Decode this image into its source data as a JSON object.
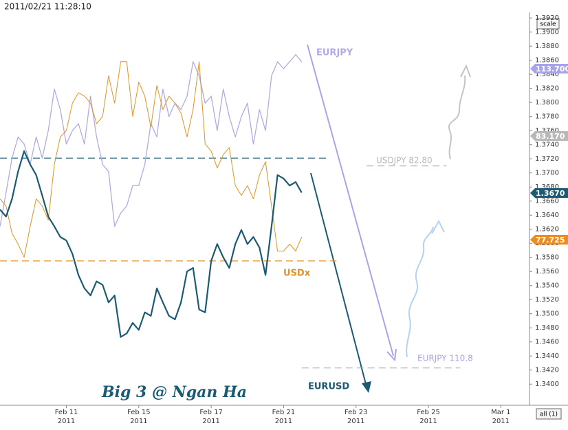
{
  "timestamp": "2011/02/21 11:28:10",
  "scale_button": "scale",
  "range_button": "all (1)",
  "chart_data": {
    "type": "line",
    "x": [
      "2011-02-09 04:00",
      "2011-02-09 08:00",
      "2011-02-09 12:00",
      "2011-02-09 16:00",
      "2011-02-09 20:00",
      "2011-02-10 00:00",
      "2011-02-10 04:00",
      "2011-02-10 08:00",
      "2011-02-10 12:00",
      "2011-02-10 16:00",
      "2011-02-10 20:00",
      "2011-02-11 00:00",
      "2011-02-11 04:00",
      "2011-02-11 08:00",
      "2011-02-11 12:00",
      "2011-02-11 16:00",
      "2011-02-11 20:00",
      "2011-02-14 00:00",
      "2011-02-14 04:00",
      "2011-02-14 08:00",
      "2011-02-14 12:00",
      "2011-02-14 16:00",
      "2011-02-14 20:00",
      "2011-02-15 00:00",
      "2011-02-15 04:00",
      "2011-02-15 08:00",
      "2011-02-15 12:00",
      "2011-02-15 16:00",
      "2011-02-15 20:00",
      "2011-02-16 00:00",
      "2011-02-16 04:00",
      "2011-02-16 08:00",
      "2011-02-16 12:00",
      "2011-02-16 16:00",
      "2011-02-16 20:00",
      "2011-02-17 00:00",
      "2011-02-17 04:00",
      "2011-02-17 08:00",
      "2011-02-17 12:00",
      "2011-02-17 16:00",
      "2011-02-17 20:00",
      "2011-02-18 00:00",
      "2011-02-18 04:00",
      "2011-02-18 08:00",
      "2011-02-18 12:00",
      "2011-02-18 16:00",
      "2011-02-18 20:00",
      "2011-02-21 00:00",
      "2011-02-21 04:00",
      "2011-02-21 08:00",
      "2011-02-21 12:00"
    ],
    "xlim": [
      "2011-02-09 04:00",
      "2011-03-01 19:00"
    ],
    "xticks": [
      {
        "value": "2011-02-11 00:00",
        "label": [
          "Feb 11",
          "2011"
        ]
      },
      {
        "value": "2011-02-15 00:00",
        "label": [
          "Feb 15",
          "2011"
        ]
      },
      {
        "value": "2011-02-17 00:00",
        "label": [
          "Feb 17",
          "2011"
        ]
      },
      {
        "value": "2011-02-21 00:00",
        "label": [
          "Feb 21",
          "2011"
        ]
      },
      {
        "value": "2011-02-23 00:00",
        "label": [
          "Feb 23",
          "2011"
        ]
      },
      {
        "value": "2011-02-25 00:00",
        "label": [
          "Feb 25",
          "2011"
        ]
      },
      {
        "value": "2011-03-01 00:00",
        "label": [
          "Mar 1",
          "2011"
        ]
      }
    ],
    "ylim": [
      1.337,
      1.3928
    ],
    "yticks": [
      {
        "value": 1.34,
        "label": "1.3400"
      },
      {
        "value": 1.342,
        "label": "1.3420"
      },
      {
        "value": 1.344,
        "label": "1.3440"
      },
      {
        "value": 1.346,
        "label": "1.3460"
      },
      {
        "value": 1.348,
        "label": "1.3480"
      },
      {
        "value": 1.35,
        "label": "1.3500"
      },
      {
        "value": 1.352,
        "label": "1.3520"
      },
      {
        "value": 1.354,
        "label": "1.3540"
      },
      {
        "value": 1.356,
        "label": "1.3560"
      },
      {
        "value": 1.358,
        "label": "1.3580"
      },
      {
        "value": 1.36,
        "label": "1.3600"
      },
      {
        "value": 1.362,
        "label": "1.3620"
      },
      {
        "value": 1.364,
        "label": "1.3640"
      },
      {
        "value": 1.366,
        "label": "1.3660"
      },
      {
        "value": 1.368,
        "label": "1.3680"
      },
      {
        "value": 1.37,
        "label": "1.3700"
      },
      {
        "value": 1.372,
        "label": "1.3720"
      },
      {
        "value": 1.374,
        "label": "1.3740"
      },
      {
        "value": 1.376,
        "label": "1.3760"
      },
      {
        "value": 1.378,
        "label": "1.3780"
      },
      {
        "value": 1.38,
        "label": "1.3800"
      },
      {
        "value": 1.382,
        "label": "1.3820"
      },
      {
        "value": 1.384,
        "label": "1.3840"
      },
      {
        "value": 1.386,
        "label": "1.3860"
      },
      {
        "value": 1.388,
        "label": "1.3880"
      },
      {
        "value": 1.39,
        "label": "1.3900"
      },
      {
        "value": 1.392,
        "label": "1.3920"
      }
    ],
    "series": [
      {
        "name": "EURJPY",
        "color": "#b0aae8",
        "values": [
          1.3624,
          1.3672,
          1.3721,
          1.3751,
          1.3741,
          1.3712,
          1.3751,
          1.3721,
          1.376,
          1.3819,
          1.379,
          1.3741,
          1.376,
          1.377,
          1.3741,
          1.3809,
          1.3751,
          1.3712,
          1.3702,
          1.3624,
          1.3643,
          1.3653,
          1.3682,
          1.3682,
          1.3712,
          1.377,
          1.3751,
          1.3819,
          1.378,
          1.3799,
          1.379,
          1.3809,
          1.3858,
          1.3838,
          1.3799,
          1.3809,
          1.376,
          1.3819,
          1.378,
          1.3751,
          1.378,
          1.3799,
          1.3741,
          1.379,
          1.376,
          1.3838,
          1.3858,
          1.3848,
          1.3858,
          1.3868,
          1.3858
        ]
      },
      {
        "name": "USDx",
        "color": "#e8901e",
        "values": [
          1.3663,
          1.3653,
          1.3614,
          1.3599,
          1.358,
          1.3624,
          1.3663,
          1.3653,
          1.3633,
          1.3712,
          1.3751,
          1.376,
          1.3799,
          1.3814,
          1.3809,
          1.3799,
          1.377,
          1.378,
          1.3838,
          1.3799,
          1.3858,
          1.3858,
          1.378,
          1.3829,
          1.3809,
          1.3765,
          1.3824,
          1.379,
          1.3809,
          1.3799,
          1.3785,
          1.3751,
          1.379,
          1.3858,
          1.3741,
          1.3731,
          1.3707,
          1.3726,
          1.3736,
          1.3682,
          1.3668,
          1.3682,
          1.3663,
          1.3697,
          1.3716,
          1.3653,
          1.3589,
          1.3589,
          1.3599,
          1.3589,
          1.3609
        ]
      },
      {
        "name": "EURUSD",
        "color": "#1a5a73",
        "values": [
          1.3648,
          1.3638,
          1.3663,
          1.3702,
          1.3731,
          1.3712,
          1.3697,
          1.3668,
          1.3638,
          1.3624,
          1.3609,
          1.3604,
          1.3585,
          1.3555,
          1.3536,
          1.3526,
          1.3546,
          1.3541,
          1.3516,
          1.3526,
          1.3467,
          1.3472,
          1.3487,
          1.3477,
          1.3502,
          1.3497,
          1.3536,
          1.3516,
          1.3497,
          1.3492,
          1.3516,
          1.356,
          1.3565,
          1.3506,
          1.3502,
          1.3575,
          1.3599,
          1.358,
          1.3565,
          1.3599,
          1.3619,
          1.3599,
          1.3609,
          1.3594,
          1.3555,
          1.3624,
          1.3697,
          1.3692,
          1.3682,
          1.3687,
          1.3672
        ]
      }
    ],
    "reference_lines": [
      {
        "y": 1.3721,
        "x": [
          "2011-02-09 04:00",
          "2011-02-22 06:00"
        ],
        "color": "#1a5a73"
      },
      {
        "y": 1.3575,
        "x": [
          "2011-02-09 04:00",
          "2011-02-22 11:00"
        ],
        "color": "#e8901e"
      },
      {
        "y": 1.371,
        "x": [
          "2011-02-23 07:00",
          "2011-02-25 12:00"
        ],
        "color": "#aaaaaa"
      },
      {
        "y": 1.3423,
        "x": [
          "2011-02-21 12:00",
          "2011-02-25 21:00"
        ],
        "color": "#aaaaaa"
      }
    ],
    "price_labels": [
      {
        "text": "113.700",
        "color": "#a8a4ec"
      },
      {
        "text": "83.170",
        "color": "#b8b8b8"
      },
      {
        "text": "1.3670",
        "color": "#1a5a73"
      },
      {
        "text": "77.725",
        "color": "#f08c1e"
      }
    ],
    "annotations": [
      {
        "text": "USDJPY 82.80",
        "color": "#b8b8b8"
      },
      {
        "text": "EURJPY 110.8",
        "color": "#a8a4ec"
      },
      {
        "text": "Big 3 @ Ngan Ha",
        "color": "#1a5a73"
      }
    ]
  }
}
